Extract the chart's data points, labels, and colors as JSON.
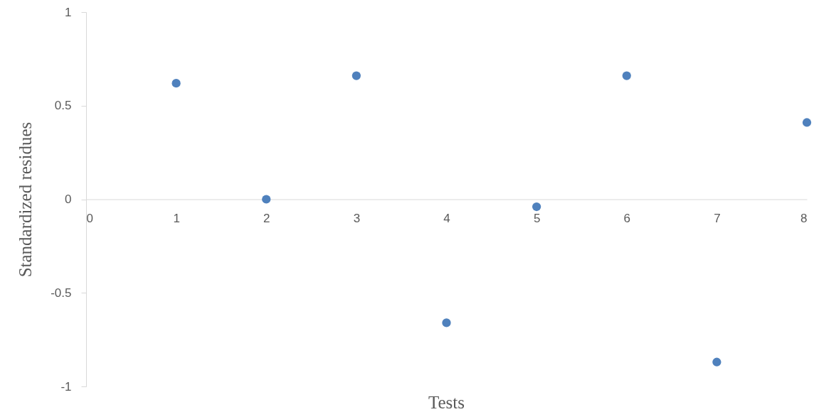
{
  "chart_data": {
    "type": "scatter",
    "xlabel": "Tests",
    "ylabel": "Standardized residues",
    "x": [
      1,
      2,
      3,
      4,
      5,
      6,
      7,
      8
    ],
    "series": [
      {
        "color": "#4f81bd",
        "values": [
          0.62,
          0.0,
          0.66,
          -0.66,
          -0.04,
          0.66,
          -0.87,
          0.41
        ]
      }
    ],
    "xlim": [
      0,
      8
    ],
    "xticks": [
      0,
      1,
      2,
      3,
      4,
      5,
      6,
      7,
      8
    ],
    "ylim": [
      -1,
      1
    ],
    "yticks": [
      -1,
      -0.5,
      0,
      0.5,
      1
    ],
    "grid": false,
    "marker": "circle"
  }
}
